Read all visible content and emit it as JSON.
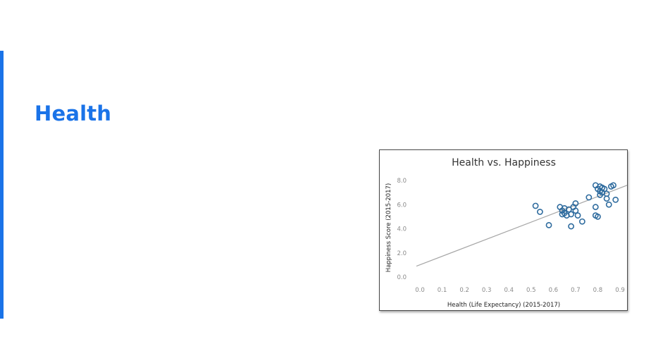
{
  "slide": {
    "title": "Health",
    "accent_color": "#1a73e8"
  },
  "chart_data": {
    "type": "scatter",
    "title": "Health vs. Happiness",
    "xlabel": "Health (Life Expectancy) (2015-2017)",
    "ylabel": "Happiness Score (2015-2017)",
    "xlim": [
      0.0,
      0.9
    ],
    "ylim": [
      0.0,
      8.0
    ],
    "x_ticks": [
      "0.0",
      "0.1",
      "0.2",
      "0.3",
      "0.4",
      "0.5",
      "0.6",
      "0.7",
      "0.8",
      "0.9"
    ],
    "y_ticks": [
      "0.0",
      "2.0",
      "4.0",
      "6.0",
      "8.0"
    ],
    "grid": false,
    "marker_color": "#2e6b9e",
    "trendline": {
      "color": "#a6a6a6",
      "x": [
        0.0,
        0.9
      ],
      "y": [
        0.9,
        7.6
      ]
    },
    "points": [
      {
        "x": 0.52,
        "y": 5.9
      },
      {
        "x": 0.54,
        "y": 5.4
      },
      {
        "x": 0.58,
        "y": 4.3
      },
      {
        "x": 0.63,
        "y": 5.8
      },
      {
        "x": 0.64,
        "y": 5.5
      },
      {
        "x": 0.64,
        "y": 5.2
      },
      {
        "x": 0.65,
        "y": 5.7
      },
      {
        "x": 0.65,
        "y": 5.3
      },
      {
        "x": 0.66,
        "y": 5.1
      },
      {
        "x": 0.67,
        "y": 5.6
      },
      {
        "x": 0.68,
        "y": 5.2
      },
      {
        "x": 0.68,
        "y": 4.2
      },
      {
        "x": 0.69,
        "y": 5.8
      },
      {
        "x": 0.7,
        "y": 6.1
      },
      {
        "x": 0.7,
        "y": 5.5
      },
      {
        "x": 0.71,
        "y": 5.1
      },
      {
        "x": 0.73,
        "y": 4.6
      },
      {
        "x": 0.76,
        "y": 6.6
      },
      {
        "x": 0.79,
        "y": 7.6
      },
      {
        "x": 0.79,
        "y": 5.8
      },
      {
        "x": 0.79,
        "y": 5.1
      },
      {
        "x": 0.8,
        "y": 5.0
      },
      {
        "x": 0.8,
        "y": 7.3
      },
      {
        "x": 0.81,
        "y": 7.5
      },
      {
        "x": 0.81,
        "y": 7.1
      },
      {
        "x": 0.81,
        "y": 6.8
      },
      {
        "x": 0.82,
        "y": 7.0
      },
      {
        "x": 0.82,
        "y": 7.4
      },
      {
        "x": 0.83,
        "y": 7.3
      },
      {
        "x": 0.84,
        "y": 6.9
      },
      {
        "x": 0.84,
        "y": 6.5
      },
      {
        "x": 0.85,
        "y": 6.0
      },
      {
        "x": 0.86,
        "y": 7.5
      },
      {
        "x": 0.87,
        "y": 7.6
      },
      {
        "x": 0.88,
        "y": 6.4
      }
    ]
  }
}
